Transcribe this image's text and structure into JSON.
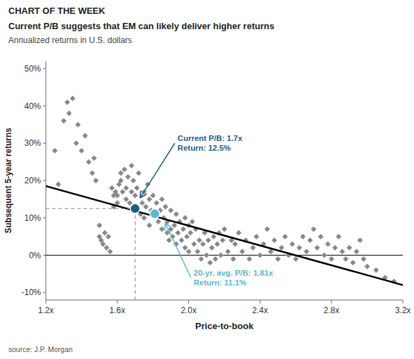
{
  "chart_data": {
    "type": "scatter",
    "overline": "CHART OF THE WEEK",
    "title": "Current P/B suggests that EM can likely deliver higher returns",
    "subtitle": "Annualized returns in U.S. dollars",
    "xlabel": "Price-to-book",
    "ylabel": "Subsequent 5-year returns",
    "source": "source: J.P. Morgan",
    "xlim": [
      1.2,
      3.2
    ],
    "ylim": [
      -0.12,
      0.52
    ],
    "xticks": [
      {
        "value": 1.2,
        "label": "1.2x"
      },
      {
        "value": 1.6,
        "label": "1.6x"
      },
      {
        "value": 2.0,
        "label": "2.0x"
      },
      {
        "value": 2.4,
        "label": "2.4x"
      },
      {
        "value": 2.8,
        "label": "2.8x"
      },
      {
        "value": 3.2,
        "label": "3.2x"
      }
    ],
    "yticks": [
      {
        "value": -0.1,
        "label": "-10%"
      },
      {
        "value": 0.0,
        "label": "0%"
      },
      {
        "value": 0.1,
        "label": "10%"
      },
      {
        "value": 0.2,
        "label": "20%"
      },
      {
        "value": 0.3,
        "label": "30%"
      },
      {
        "value": 0.4,
        "label": "40%"
      },
      {
        "value": 0.5,
        "label": "50%"
      }
    ],
    "grid": false,
    "series": [
      {
        "type": "scatter",
        "color": "#888888",
        "marker": "diamond",
        "x": [
          1.25,
          1.27,
          1.3,
          1.32,
          1.33,
          1.35,
          1.37,
          1.38,
          1.4,
          1.42,
          1.44,
          1.46,
          1.47,
          1.48,
          1.5,
          1.5,
          1.51,
          1.52,
          1.53,
          1.54,
          1.55,
          1.56,
          1.57,
          1.58,
          1.58,
          1.59,
          1.6,
          1.6,
          1.61,
          1.62,
          1.62,
          1.63,
          1.64,
          1.65,
          1.65,
          1.66,
          1.67,
          1.68,
          1.68,
          1.69,
          1.7,
          1.7,
          1.71,
          1.72,
          1.73,
          1.74,
          1.75,
          1.75,
          1.76,
          1.77,
          1.78,
          1.78,
          1.79,
          1.8,
          1.81,
          1.82,
          1.83,
          1.84,
          1.85,
          1.85,
          1.86,
          1.87,
          1.88,
          1.88,
          1.89,
          1.9,
          1.9,
          1.91,
          1.92,
          1.93,
          1.93,
          1.94,
          1.95,
          1.96,
          1.97,
          1.98,
          1.98,
          1.99,
          2.0,
          2.0,
          2.01,
          2.02,
          2.03,
          2.04,
          2.05,
          2.06,
          2.07,
          2.08,
          2.09,
          2.1,
          2.11,
          2.12,
          2.13,
          2.14,
          2.15,
          2.16,
          2.17,
          2.18,
          2.19,
          2.2,
          2.22,
          2.24,
          2.25,
          2.26,
          2.28,
          2.3,
          2.32,
          2.34,
          2.36,
          2.38,
          2.4,
          2.42,
          2.44,
          2.46,
          2.48,
          2.5,
          2.52,
          2.54,
          2.56,
          2.58,
          2.6,
          2.62,
          2.64,
          2.66,
          2.68,
          2.7,
          2.72,
          2.74,
          2.76,
          2.78,
          2.8,
          2.82,
          2.84,
          2.86,
          2.88,
          2.9,
          2.92,
          2.94,
          2.96,
          2.98,
          3.0,
          3.05,
          3.1,
          3.15
        ],
        "values": [
          0.28,
          0.19,
          0.36,
          0.41,
          0.38,
          0.42,
          0.3,
          0.35,
          0.28,
          0.32,
          0.25,
          0.22,
          0.26,
          0.2,
          0.05,
          0.08,
          0.04,
          0.03,
          0.06,
          0.02,
          0.05,
          0.01,
          0.18,
          0.16,
          0.13,
          0.17,
          0.14,
          0.16,
          0.19,
          0.22,
          0.2,
          0.17,
          0.23,
          0.15,
          0.18,
          0.21,
          0.14,
          0.17,
          0.24,
          0.2,
          0.13,
          0.16,
          0.18,
          0.22,
          0.11,
          0.14,
          0.17,
          0.1,
          0.13,
          0.19,
          0.08,
          0.15,
          0.12,
          0.16,
          0.11,
          0.14,
          0.09,
          0.12,
          0.07,
          0.15,
          0.1,
          0.13,
          0.06,
          0.09,
          0.04,
          0.07,
          0.12,
          0.05,
          0.08,
          0.03,
          0.11,
          0.06,
          0.09,
          0.04,
          0.07,
          0.02,
          0.1,
          0.05,
          0.08,
          0.01,
          0.06,
          0.09,
          0.03,
          0.07,
          0.01,
          0.04,
          -0.01,
          0.03,
          0.06,
          0.0,
          0.04,
          -0.02,
          0.02,
          0.05,
          -0.01,
          0.03,
          0.06,
          0.0,
          0.04,
          0.07,
          0.01,
          0.04,
          -0.01,
          0.03,
          0.06,
          0.01,
          0.04,
          -0.01,
          0.02,
          0.05,
          0.0,
          0.03,
          0.07,
          0.01,
          0.04,
          -0.01,
          0.02,
          0.05,
          0.0,
          0.03,
          -0.01,
          0.02,
          0.05,
          0.01,
          0.04,
          0.07,
          0.02,
          0.05,
          0.0,
          0.03,
          -0.01,
          0.02,
          0.05,
          0.01,
          -0.01,
          0.02,
          -0.02,
          0.01,
          0.04,
          -0.01,
          -0.03,
          -0.04,
          -0.06,
          -0.07
        ]
      },
      {
        "type": "line",
        "color": "#000000",
        "x": [
          1.2,
          3.2
        ],
        "values": [
          0.185,
          -0.08
        ]
      },
      {
        "type": "line",
        "color": "#888888",
        "line_style": "dashed",
        "x": [
          1.7,
          1.7
        ],
        "values": [
          -0.12,
          0.125
        ]
      },
      {
        "type": "line",
        "color": "#888888",
        "line_style": "dashed",
        "x": [
          1.2,
          1.7
        ],
        "values": [
          0.125,
          0.125
        ]
      },
      {
        "type": "scatter",
        "color": "#1a5e8a",
        "marker": "circle",
        "x": [
          1.7
        ],
        "values": [
          0.125
        ]
      },
      {
        "type": "scatter",
        "color": "#5bb8d4",
        "marker": "circle",
        "x": [
          1.81
        ],
        "values": [
          0.111
        ]
      }
    ],
    "reference_lines": [
      {
        "axis": "y",
        "value": 0,
        "color": "#000000"
      }
    ],
    "annotations": [
      {
        "text": "Current P/B: 1.7x\nReturn: 12.5%",
        "x": 1.93,
        "y": 0.3,
        "arrow_x": 1.73,
        "arrow_y": 0.155,
        "color": "#1a5e8a"
      },
      {
        "text": "20-yr. avg. P/B: 1.81x\nReturn: 11.1%",
        "x": 2.02,
        "y": -0.06,
        "arrow_x": 1.87,
        "arrow_y": 0.085,
        "color": "#5bb8d4"
      }
    ]
  }
}
